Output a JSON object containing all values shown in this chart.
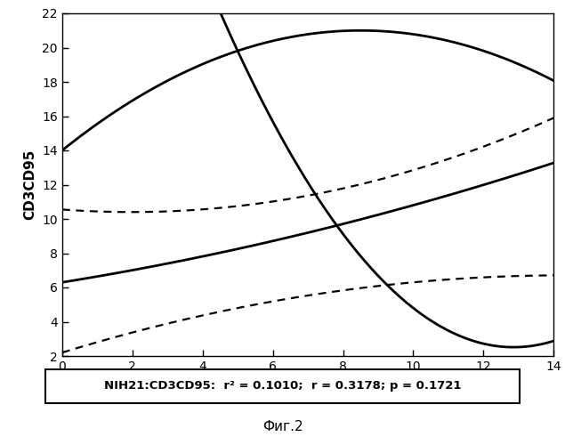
{
  "ylabel": "CD3CD95",
  "stats_label": "NIH21:CD3CD95:  r² = 0.1010;  r = 0.3178; p = 0.1721",
  "fig_label": "Фиг.2",
  "xmin": 0,
  "xmax": 14,
  "ymin": 2,
  "ymax": 22,
  "yticks": [
    2,
    4,
    6,
    8,
    10,
    12,
    14,
    16,
    18,
    20,
    22
  ],
  "xticks": [
    0,
    2,
    4,
    6,
    8,
    10,
    12,
    14
  ],
  "background_color": "#ffffff",
  "line_color": "#000000",
  "lw_solid": 2.0,
  "lw_dotted": 1.6,
  "curve_upper_solid": [
    -0.09688,
    1.6469,
    14.0
  ],
  "curve_upper_dotted": [
    0.038,
    -0.15,
    10.55
  ],
  "curve_mid_solid": [
    0.012,
    0.33,
    6.3
  ],
  "curve_lower_dotted": [
    -0.022,
    0.63,
    2.2
  ],
  "curve_lower_solid": [
    0.28,
    -7.2,
    48.8
  ]
}
